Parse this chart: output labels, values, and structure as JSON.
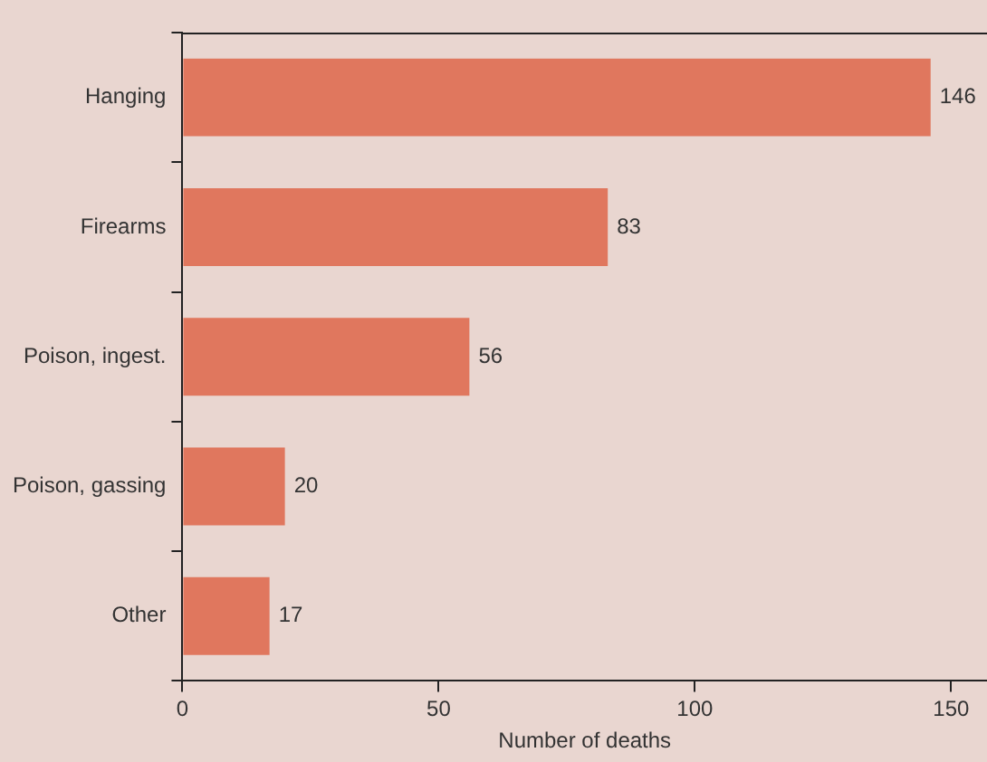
{
  "chart_data": {
    "type": "bar",
    "orientation": "horizontal",
    "xlabel": "Number of deaths",
    "categories": [
      "Hanging",
      "Firearms",
      "Poison, ingest.",
      "Poison, gassing",
      "Other"
    ],
    "values": [
      146,
      83,
      56,
      20,
      17
    ],
    "color": "#e0775e",
    "xlim": [
      0,
      157
    ],
    "xticks": [
      0,
      50,
      100,
      150
    ],
    "data_labels": true,
    "grid": false,
    "legend": false
  }
}
